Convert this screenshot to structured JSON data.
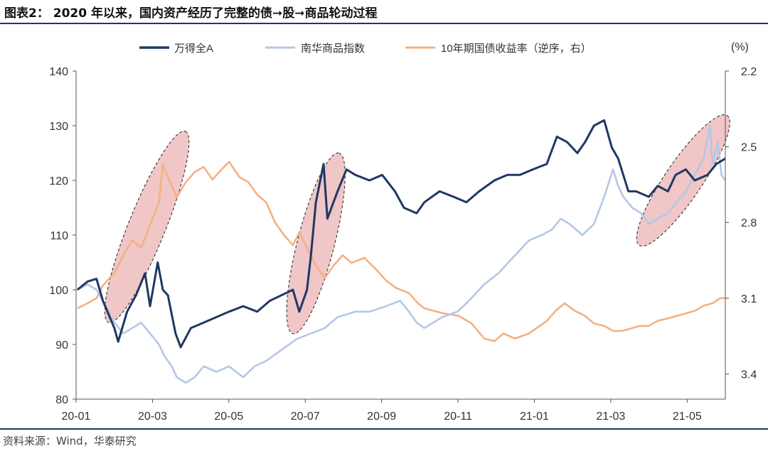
{
  "figure": {
    "title": "图表2：  2020 年以来，国内资产经历了完整的债➞股➞商品轮动过程",
    "source": "资料来源：Wind，华泰研究"
  },
  "colors": {
    "wind_a": "#1f3864",
    "nanhua": "#b4c7e7",
    "bond": "#f4b183",
    "ellipse_fill": "#e6a0a0",
    "rule": "#1f3864"
  },
  "chart_data": {
    "type": "line",
    "title": "",
    "xlabel": "",
    "ylabel": "",
    "right_axis_unit": "(%)",
    "x_ticks": [
      "20-01",
      "20-03",
      "20-05",
      "20-07",
      "20-09",
      "20-11",
      "21-01",
      "21-03",
      "21-05"
    ],
    "x_range": [
      "2020-01-01",
      "2021-05-24"
    ],
    "y_left": {
      "ylim": [
        80,
        140
      ],
      "ticks": [
        80,
        90,
        100,
        110,
        120,
        130,
        140
      ]
    },
    "y_right": {
      "ylim": [
        3.5,
        2.2
      ],
      "inverted": true,
      "ticks": [
        2.2,
        2.5,
        2.8,
        3.1,
        3.4
      ]
    },
    "grid": false,
    "legend_position": "top",
    "series": [
      {
        "name": "万得全A",
        "axis": "left",
        "color": "#1f3864",
        "points": [
          [
            "2020-01-02",
            100
          ],
          [
            "2020-01-10",
            101.5
          ],
          [
            "2020-01-17",
            102
          ],
          [
            "2020-01-22",
            98
          ],
          [
            "2020-01-31",
            93
          ],
          [
            "2020-02-03",
            90.5
          ],
          [
            "2020-02-10",
            96
          ],
          [
            "2020-02-17",
            99
          ],
          [
            "2020-02-24",
            103
          ],
          [
            "2020-02-28",
            97
          ],
          [
            "2020-03-05",
            105
          ],
          [
            "2020-03-09",
            100
          ],
          [
            "2020-03-13",
            99
          ],
          [
            "2020-03-19",
            92
          ],
          [
            "2020-03-23",
            89.5
          ],
          [
            "2020-03-31",
            93
          ],
          [
            "2020-04-10",
            94
          ],
          [
            "2020-04-20",
            95
          ],
          [
            "2020-04-30",
            96
          ],
          [
            "2020-05-11",
            97
          ],
          [
            "2020-05-22",
            96
          ],
          [
            "2020-06-01",
            98
          ],
          [
            "2020-06-10",
            99
          ],
          [
            "2020-06-19",
            100
          ],
          [
            "2020-06-24",
            96
          ],
          [
            "2020-06-30",
            100
          ],
          [
            "2020-07-03",
            106
          ],
          [
            "2020-07-07",
            116
          ],
          [
            "2020-07-13",
            123
          ],
          [
            "2020-07-16",
            113
          ],
          [
            "2020-07-24",
            118
          ],
          [
            "2020-07-31",
            122
          ],
          [
            "2020-08-07",
            121
          ],
          [
            "2020-08-18",
            120
          ],
          [
            "2020-08-28",
            121
          ],
          [
            "2020-09-07",
            118
          ],
          [
            "2020-09-14",
            115
          ],
          [
            "2020-09-24",
            114
          ],
          [
            "2020-09-30",
            116
          ],
          [
            "2020-10-12",
            118
          ],
          [
            "2020-10-23",
            117
          ],
          [
            "2020-11-02",
            116
          ],
          [
            "2020-11-12",
            118
          ],
          [
            "2020-11-24",
            120
          ],
          [
            "2020-12-04",
            121
          ],
          [
            "2020-12-14",
            121
          ],
          [
            "2020-12-24",
            122
          ],
          [
            "2021-01-04",
            123
          ],
          [
            "2021-01-12",
            128
          ],
          [
            "2021-01-20",
            127
          ],
          [
            "2021-01-28",
            125
          ],
          [
            "2021-02-03",
            127
          ],
          [
            "2021-02-10",
            130
          ],
          [
            "2021-02-18",
            131
          ],
          [
            "2021-02-24",
            126
          ],
          [
            "2021-03-01",
            124
          ],
          [
            "2021-03-09",
            118
          ],
          [
            "2021-03-15",
            118
          ],
          [
            "2021-03-25",
            117
          ],
          [
            "2021-04-01",
            119
          ],
          [
            "2021-04-09",
            118
          ],
          [
            "2021-04-15",
            121
          ],
          [
            "2021-04-23",
            122
          ],
          [
            "2021-04-30",
            120
          ],
          [
            "2021-05-10",
            121
          ],
          [
            "2021-05-17",
            123
          ],
          [
            "2021-05-24",
            124
          ]
        ]
      },
      {
        "name": "南华商品指数",
        "axis": "left",
        "color": "#b4c7e7",
        "points": [
          [
            "2020-01-02",
            100
          ],
          [
            "2020-01-10",
            101
          ],
          [
            "2020-01-17",
            100
          ],
          [
            "2020-01-22",
            98
          ],
          [
            "2020-01-31",
            94
          ],
          [
            "2020-02-07",
            92
          ],
          [
            "2020-02-14",
            93
          ],
          [
            "2020-02-21",
            94
          ],
          [
            "2020-02-28",
            92
          ],
          [
            "2020-03-06",
            90
          ],
          [
            "2020-03-10",
            88
          ],
          [
            "2020-03-16",
            86
          ],
          [
            "2020-03-20",
            84
          ],
          [
            "2020-03-27",
            83
          ],
          [
            "2020-04-03",
            84
          ],
          [
            "2020-04-10",
            86
          ],
          [
            "2020-04-20",
            85
          ],
          [
            "2020-04-30",
            86
          ],
          [
            "2020-05-11",
            84
          ],
          [
            "2020-05-20",
            86
          ],
          [
            "2020-05-29",
            87
          ],
          [
            "2020-06-10",
            89
          ],
          [
            "2020-06-22",
            91
          ],
          [
            "2020-07-03",
            92
          ],
          [
            "2020-07-14",
            93
          ],
          [
            "2020-07-24",
            95
          ],
          [
            "2020-08-07",
            96
          ],
          [
            "2020-08-18",
            96
          ],
          [
            "2020-08-31",
            97
          ],
          [
            "2020-09-11",
            98
          ],
          [
            "2020-09-18",
            96
          ],
          [
            "2020-09-24",
            94
          ],
          [
            "2020-09-30",
            93
          ],
          [
            "2020-10-14",
            95
          ],
          [
            "2020-10-26",
            96
          ],
          [
            "2020-11-04",
            98
          ],
          [
            "2020-11-16",
            101
          ],
          [
            "2020-11-27",
            103
          ],
          [
            "2020-12-09",
            106
          ],
          [
            "2020-12-21",
            109
          ],
          [
            "2020-12-31",
            110
          ],
          [
            "2021-01-08",
            111
          ],
          [
            "2021-01-15",
            113
          ],
          [
            "2021-01-22",
            112
          ],
          [
            "2021-02-01",
            110
          ],
          [
            "2021-02-10",
            112
          ],
          [
            "2021-02-18",
            117
          ],
          [
            "2021-02-25",
            122
          ],
          [
            "2021-03-01",
            119
          ],
          [
            "2021-03-05",
            117
          ],
          [
            "2021-03-12",
            115
          ],
          [
            "2021-03-19",
            114
          ],
          [
            "2021-03-25",
            112
          ],
          [
            "2021-04-01",
            113
          ],
          [
            "2021-04-09",
            114
          ],
          [
            "2021-04-16",
            116
          ],
          [
            "2021-04-23",
            118
          ],
          [
            "2021-04-30",
            121
          ],
          [
            "2021-05-07",
            124
          ],
          [
            "2021-05-12",
            130
          ],
          [
            "2021-05-14",
            123
          ],
          [
            "2021-05-18",
            127
          ],
          [
            "2021-05-21",
            121
          ],
          [
            "2021-05-24",
            120
          ]
        ]
      },
      {
        "name": "10年期国债收益率（逆序，右）",
        "axis": "right",
        "color": "#f4b183",
        "points": [
          [
            "2020-01-02",
            3.14
          ],
          [
            "2020-01-10",
            3.12
          ],
          [
            "2020-01-17",
            3.1
          ],
          [
            "2020-01-22",
            3.05
          ],
          [
            "2020-01-31",
            3.0
          ],
          [
            "2020-02-07",
            2.93
          ],
          [
            "2020-02-14",
            2.87
          ],
          [
            "2020-02-21",
            2.9
          ],
          [
            "2020-02-28",
            2.81
          ],
          [
            "2020-03-06",
            2.72
          ],
          [
            "2020-03-09",
            2.57
          ],
          [
            "2020-03-13",
            2.62
          ],
          [
            "2020-03-20",
            2.7
          ],
          [
            "2020-03-27",
            2.64
          ],
          [
            "2020-04-03",
            2.6
          ],
          [
            "2020-04-10",
            2.58
          ],
          [
            "2020-04-17",
            2.63
          ],
          [
            "2020-04-24",
            2.59
          ],
          [
            "2020-04-30",
            2.56
          ],
          [
            "2020-05-08",
            2.62
          ],
          [
            "2020-05-15",
            2.64
          ],
          [
            "2020-05-22",
            2.69
          ],
          [
            "2020-05-29",
            2.72
          ],
          [
            "2020-06-05",
            2.8
          ],
          [
            "2020-06-12",
            2.85
          ],
          [
            "2020-06-19",
            2.89
          ],
          [
            "2020-06-24",
            2.84
          ],
          [
            "2020-07-01",
            2.91
          ],
          [
            "2020-07-07",
            2.97
          ],
          [
            "2020-07-14",
            3.02
          ],
          [
            "2020-07-21",
            2.97
          ],
          [
            "2020-07-28",
            2.93
          ],
          [
            "2020-08-04",
            2.96
          ],
          [
            "2020-08-14",
            2.94
          ],
          [
            "2020-08-24",
            2.99
          ],
          [
            "2020-08-31",
            3.03
          ],
          [
            "2020-09-08",
            3.06
          ],
          [
            "2020-09-18",
            3.08
          ],
          [
            "2020-09-25",
            3.12
          ],
          [
            "2020-09-30",
            3.14
          ],
          [
            "2020-10-15",
            3.16
          ],
          [
            "2020-10-27",
            3.17
          ],
          [
            "2020-11-06",
            3.2
          ],
          [
            "2020-11-16",
            3.26
          ],
          [
            "2020-11-24",
            3.27
          ],
          [
            "2020-12-01",
            3.24
          ],
          [
            "2020-12-10",
            3.26
          ],
          [
            "2020-12-21",
            3.24
          ],
          [
            "2021-01-04",
            3.19
          ],
          [
            "2021-01-11",
            3.15
          ],
          [
            "2021-01-18",
            3.12
          ],
          [
            "2021-01-26",
            3.15
          ],
          [
            "2021-02-03",
            3.17
          ],
          [
            "2021-02-10",
            3.2
          ],
          [
            "2021-02-18",
            3.21
          ],
          [
            "2021-02-25",
            3.23
          ],
          [
            "2021-03-04",
            3.23
          ],
          [
            "2021-03-11",
            3.22
          ],
          [
            "2021-03-18",
            3.21
          ],
          [
            "2021-03-25",
            3.21
          ],
          [
            "2021-04-01",
            3.19
          ],
          [
            "2021-04-09",
            3.18
          ],
          [
            "2021-04-16",
            3.17
          ],
          [
            "2021-04-23",
            3.16
          ],
          [
            "2021-04-30",
            3.15
          ],
          [
            "2021-05-07",
            3.13
          ],
          [
            "2021-05-14",
            3.12
          ],
          [
            "2021-05-20",
            3.1
          ],
          [
            "2021-05-24",
            3.1
          ]
        ]
      }
    ]
  }
}
